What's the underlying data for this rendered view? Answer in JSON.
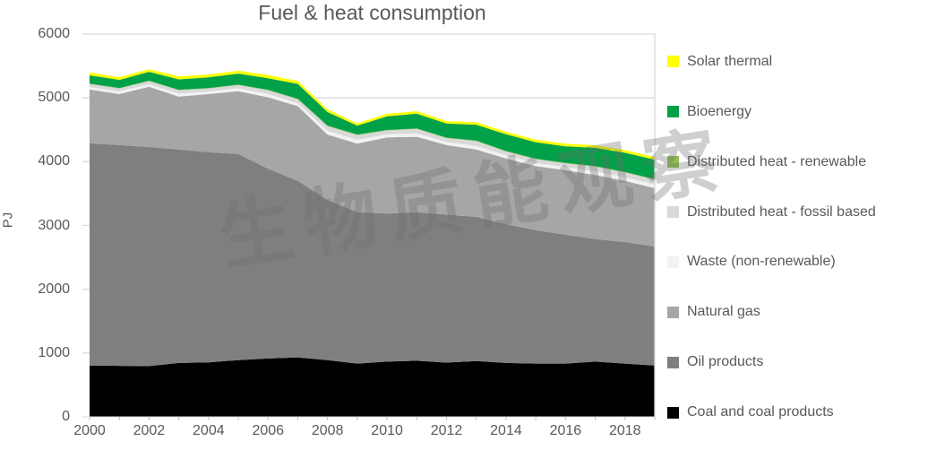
{
  "title": "Fuel & heat consumption",
  "watermark": "生物质能观察",
  "y_axis": {
    "label": "PJ",
    "ticks": [
      0,
      1000,
      2000,
      3000,
      4000,
      5000,
      6000
    ],
    "max": 6000
  },
  "x_axis": {
    "tick_labels": [
      "2000",
      "2002",
      "2004",
      "2006",
      "2008",
      "2010",
      "2012",
      "2014",
      "2016",
      "2018"
    ]
  },
  "colors": {
    "grid": "#d9d9d9",
    "tick": "#bfbfbf",
    "text": "#595959",
    "solar": "#ffff00",
    "bioenergy": "#00a148",
    "dh_renewable": "#8dbe50",
    "dh_fossil": "#d9d9d9",
    "waste": "#f2f2f2",
    "gas": "#a6a6a6",
    "oil": "#7f7f7f",
    "coal": "#000000"
  },
  "legend": [
    {
      "id": "solar",
      "label": "Solar thermal",
      "color": "#ffff00"
    },
    {
      "id": "bioenergy",
      "label": "Bioenergy",
      "color": "#00a148"
    },
    {
      "id": "dh_renewable",
      "label": "Distributed heat - renewable",
      "color": "#8dbe50"
    },
    {
      "id": "dh_fossil",
      "label": "Distributed heat - fossil based",
      "color": "#d9d9d9"
    },
    {
      "id": "waste",
      "label": "Waste (non-renewable)",
      "color": "#f2f2f2"
    },
    {
      "id": "gas",
      "label": "Natural gas",
      "color": "#a6a6a6"
    },
    {
      "id": "oil",
      "label": "Oil products",
      "color": "#7f7f7f"
    },
    {
      "id": "coal",
      "label": "Coal and coal products",
      "color": "#000000"
    }
  ],
  "chart_data": {
    "type": "area",
    "stacked": true,
    "title": "Fuel & heat consumption",
    "xlabel": "",
    "ylabel": "PJ",
    "ylim": [
      0,
      6000
    ],
    "grid": "horizontal",
    "legend_position": "right",
    "x": [
      2000,
      2001,
      2002,
      2003,
      2004,
      2005,
      2006,
      2007,
      2008,
      2009,
      2010,
      2011,
      2012,
      2013,
      2014,
      2015,
      2016,
      2017,
      2018,
      2019
    ],
    "series": [
      {
        "name": "Coal and coal products",
        "color": "#000000",
        "values": [
          805,
          800,
          795,
          845,
          855,
          890,
          915,
          930,
          890,
          835,
          865,
          880,
          850,
          875,
          845,
          835,
          835,
          865,
          835,
          805
        ]
      },
      {
        "name": "Oil products",
        "color": "#7f7f7f",
        "values": [
          3485,
          3460,
          3435,
          3345,
          3295,
          3230,
          2975,
          2770,
          2510,
          2375,
          2320,
          2330,
          2320,
          2260,
          2175,
          2090,
          2020,
          1920,
          1905,
          1865
        ]
      },
      {
        "name": "Natural gas",
        "color": "#a6a6a6",
        "values": [
          840,
          800,
          945,
          830,
          910,
          985,
          1120,
          1170,
          1025,
          1075,
          1195,
          1180,
          1090,
          1055,
          1030,
          1005,
          1010,
          1005,
          960,
          915
        ]
      },
      {
        "name": "Waste (non-renewable)",
        "color": "#f2f2f2",
        "values": [
          40,
          40,
          40,
          45,
          40,
          43,
          48,
          48,
          56,
          57,
          48,
          53,
          48,
          57,
          48,
          48,
          48,
          57,
          56,
          56
        ]
      },
      {
        "name": "Distributed heat - fossil based",
        "color": "#d9d9d9",
        "values": [
          48,
          48,
          48,
          56,
          48,
          53,
          61,
          61,
          75,
          75,
          61,
          71,
          61,
          75,
          61,
          61,
          61,
          75,
          75,
          75
        ]
      },
      {
        "name": "Distributed heat - renewable",
        "color": "#8dbe50",
        "values": [
          6,
          6,
          6,
          7,
          6,
          7,
          8,
          8,
          9,
          9,
          8,
          8,
          8,
          9,
          8,
          8,
          8,
          9,
          9,
          9
        ]
      },
      {
        "name": "Bioenergy",
        "color": "#00a148",
        "values": [
          130,
          128,
          140,
          162,
          168,
          172,
          182,
          232,
          212,
          140,
          214,
          230,
          221,
          248,
          262,
          259,
          259,
          286,
          300,
          307
        ]
      },
      {
        "name": "Solar thermal",
        "color": "#ffff00",
        "values": [
          45,
          40,
          42,
          45,
          44,
          45,
          48,
          46,
          42,
          35,
          40,
          40,
          38,
          40,
          40,
          40,
          40,
          40,
          42,
          40
        ]
      }
    ]
  }
}
